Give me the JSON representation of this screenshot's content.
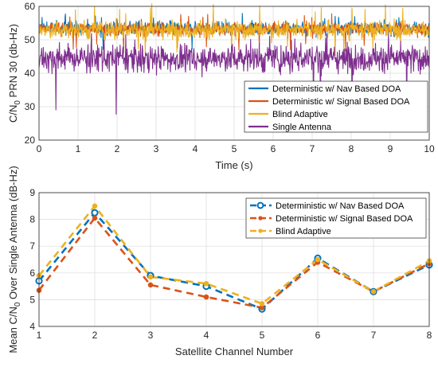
{
  "chart_data": [
    {
      "type": "line",
      "xlabel": "Time (s)",
      "ylabel": {
        "pre": "C/N",
        "sub": "0",
        "post": " PRN 30 (db-Hz)"
      },
      "xlim": [
        0,
        10
      ],
      "ylim": [
        20,
        60
      ],
      "xticks": [
        "0",
        "1",
        "2",
        "3",
        "4",
        "5",
        "6",
        "7",
        "8",
        "9",
        "10"
      ],
      "yticks": [
        "20",
        "30",
        "40",
        "50",
        "60"
      ],
      "grid": true,
      "legend_position": "bottom-right",
      "series": [
        {
          "name": "Deterministic w/ Nav Based DOA",
          "color": "#0072BD",
          "mean": 53.5,
          "min": 46,
          "max": 58
        },
        {
          "name": "Deterministic w/ Signal Based DOA",
          "color": "#D95319",
          "mean": 53.3,
          "min": 46,
          "max": 58
        },
        {
          "name": "Blind Adaptive",
          "color": "#EDB120",
          "mean": 53.0,
          "min": 45,
          "max": 61
        },
        {
          "name": "Single Antenna",
          "color": "#7E2F8E",
          "mean": 44.5,
          "min": 27,
          "max": 52
        }
      ]
    },
    {
      "type": "line",
      "xlabel": "Satellite Channel Number",
      "ylabel": {
        "pre": "Mean C/N",
        "sub": "0",
        "post": " Over Single Antenna (dB-Hz)"
      },
      "categories": [
        1,
        2,
        3,
        4,
        5,
        6,
        7,
        8
      ],
      "xlim": [
        1,
        8
      ],
      "ylim": [
        4,
        9
      ],
      "xticks": [
        "1",
        "2",
        "3",
        "4",
        "5",
        "6",
        "7",
        "8"
      ],
      "yticks": [
        "4",
        "5",
        "6",
        "7",
        "8",
        "9"
      ],
      "grid": true,
      "legend_position": "top-right",
      "series": [
        {
          "name": "Deterministic w/ Nav Based DOA",
          "color": "#0072BD",
          "marker": "circle",
          "values": [
            5.7,
            8.25,
            5.9,
            5.5,
            4.65,
            6.55,
            5.3,
            6.3
          ]
        },
        {
          "name": "Deterministic w/ Signal Based DOA",
          "color": "#D95319",
          "marker": "dot",
          "values": [
            5.35,
            8.05,
            5.55,
            5.1,
            4.7,
            6.4,
            5.3,
            6.35
          ]
        },
        {
          "name": "Blind Adaptive",
          "color": "#EDB120",
          "marker": "dot",
          "values": [
            5.9,
            8.5,
            5.85,
            5.6,
            4.85,
            6.5,
            5.3,
            6.45
          ]
        }
      ]
    }
  ]
}
